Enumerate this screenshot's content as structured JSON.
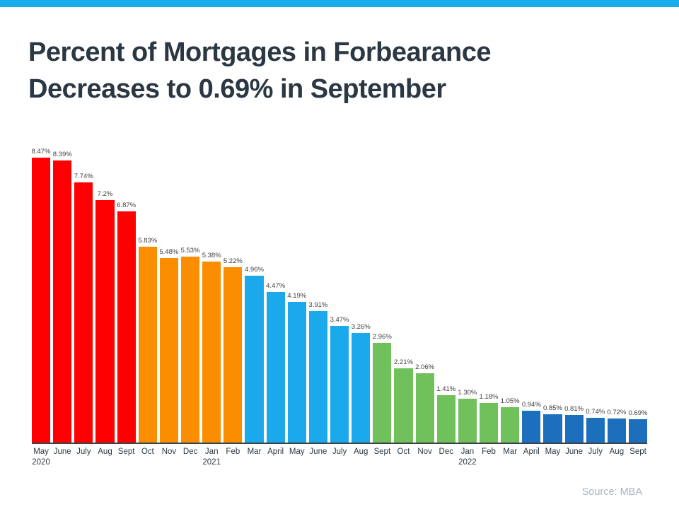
{
  "header": {
    "accent_color": "#1AABEB"
  },
  "title": {
    "line1": "Percent of Mortgages in Forbearance",
    "line2": "Decreases to 0.69% in September"
  },
  "source": {
    "label": "Source: MBA"
  },
  "chart_data": {
    "type": "bar",
    "title": "Percent of Mortgages in Forbearance Decreases to 0.69% in September",
    "xlabel": "",
    "ylabel": "",
    "ylim": [
      0,
      8.47
    ],
    "grid": false,
    "legend": false,
    "value_labels": true,
    "axis_line_color": "#3A424A",
    "colors": {
      "red": "#FF0000",
      "orange": "#FB8D00",
      "light_blue": "#1BA9EC",
      "green": "#70C05C",
      "dark_blue": "#1C6FBD"
    },
    "categories": [
      "May 2020",
      "June",
      "July",
      "Aug",
      "Sept",
      "Oct",
      "Nov",
      "Dec",
      "Jan 2021",
      "Feb",
      "Mar",
      "April",
      "May",
      "June",
      "July",
      "Aug",
      "Sept",
      "Oct",
      "Nov",
      "Dec",
      "Jan 2022",
      "Feb",
      "Mar",
      "April",
      "May",
      "June",
      "July",
      "Aug",
      "Sept"
    ],
    "values": [
      8.47,
      8.39,
      7.74,
      7.2,
      6.87,
      5.83,
      5.48,
      5.53,
      5.38,
      5.22,
      4.96,
      4.47,
      4.19,
      3.91,
      3.47,
      3.26,
      2.96,
      2.21,
      2.06,
      1.41,
      1.3,
      1.18,
      1.05,
      0.94,
      0.85,
      0.81,
      0.74,
      0.72,
      0.69
    ],
    "points": [
      {
        "month": "May",
        "year": "2020",
        "value": 8.47,
        "label": "8.47%",
        "color": "#FF0000"
      },
      {
        "month": "June",
        "value": 8.39,
        "label": "8.39%",
        "color": "#FF0000"
      },
      {
        "month": "July",
        "value": 7.74,
        "label": "7.74%",
        "color": "#FF0000"
      },
      {
        "month": "Aug",
        "value": 7.2,
        "label": "7.2%",
        "color": "#FF0000"
      },
      {
        "month": "Sept",
        "value": 6.87,
        "label": "6.87%",
        "color": "#FF0000"
      },
      {
        "month": "Oct",
        "value": 5.83,
        "label": "5.83%",
        "color": "#FB8D00"
      },
      {
        "month": "Nov",
        "value": 5.48,
        "label": "5.48%",
        "color": "#FB8D00"
      },
      {
        "month": "Dec",
        "value": 5.53,
        "label": "5.53%",
        "color": "#FB8D00"
      },
      {
        "month": "Jan",
        "year": "2021",
        "value": 5.38,
        "label": "5.38%",
        "color": "#FB8D00"
      },
      {
        "month": "Feb",
        "value": 5.22,
        "label": "5.22%",
        "color": "#FB8D00"
      },
      {
        "month": "Mar",
        "value": 4.96,
        "label": "4.96%",
        "color": "#1BA9EC"
      },
      {
        "month": "April",
        "value": 4.47,
        "label": "4.47%",
        "color": "#1BA9EC"
      },
      {
        "month": "May",
        "value": 4.19,
        "label": "4.19%",
        "color": "#1BA9EC"
      },
      {
        "month": "June",
        "value": 3.91,
        "label": "3.91%",
        "color": "#1BA9EC"
      },
      {
        "month": "July",
        "value": 3.47,
        "label": "3.47%",
        "color": "#1BA9EC"
      },
      {
        "month": "Aug",
        "value": 3.26,
        "label": "3.26%",
        "color": "#1BA9EC"
      },
      {
        "month": "Sept",
        "value": 2.96,
        "label": "2.96%",
        "color": "#70C05C"
      },
      {
        "month": "Oct",
        "value": 2.21,
        "label": "2.21%",
        "color": "#70C05C"
      },
      {
        "month": "Nov",
        "value": 2.06,
        "label": "2.06%",
        "color": "#70C05C"
      },
      {
        "month": "Dec",
        "value": 1.41,
        "label": "1.41%",
        "color": "#70C05C"
      },
      {
        "month": "Jan",
        "year": "2022",
        "value": 1.3,
        "label": "1.30%",
        "color": "#70C05C"
      },
      {
        "month": "Feb",
        "value": 1.18,
        "label": "1.18%",
        "color": "#70C05C"
      },
      {
        "month": "Mar",
        "value": 1.05,
        "label": "1.05%",
        "color": "#70C05C"
      },
      {
        "month": "April",
        "value": 0.94,
        "label": "0.94%",
        "color": "#1C6FBD"
      },
      {
        "month": "May",
        "value": 0.85,
        "label": "0.85%",
        "color": "#1C6FBD"
      },
      {
        "month": "June",
        "value": 0.81,
        "label": "0.81%",
        "color": "#1C6FBD"
      },
      {
        "month": "July",
        "value": 0.74,
        "label": "0.74%",
        "color": "#1C6FBD"
      },
      {
        "month": "Aug",
        "value": 0.72,
        "label": "0.72%",
        "color": "#1C6FBD"
      },
      {
        "month": "Sept",
        "value": 0.69,
        "label": "0.69%",
        "color": "#1C6FBD"
      }
    ]
  }
}
